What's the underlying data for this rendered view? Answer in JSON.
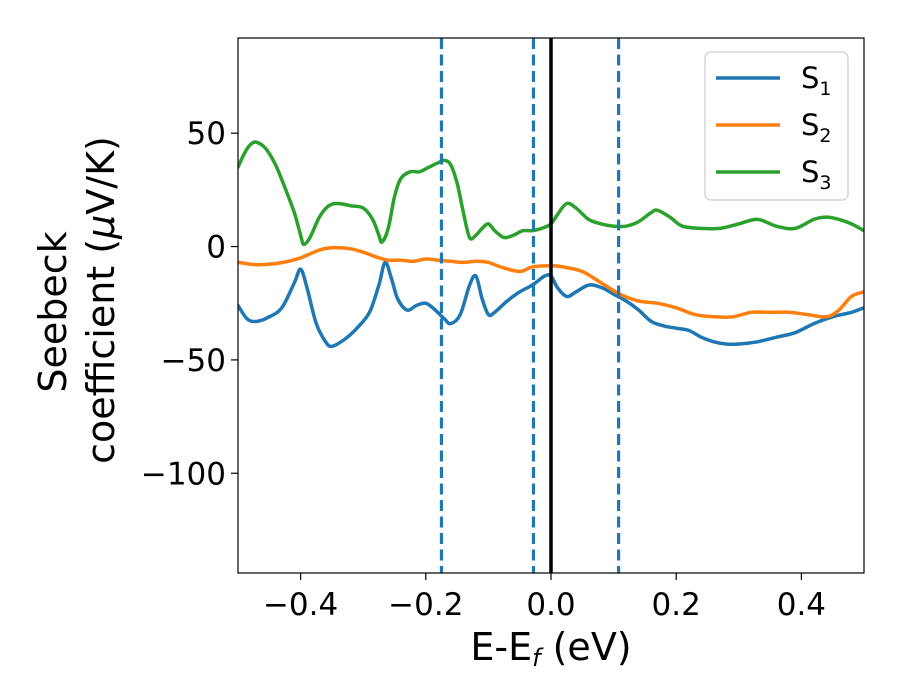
{
  "chart_data": {
    "type": "line",
    "xlabel": {
      "main": "E-E",
      "sub": "f",
      "unit": " (eV)"
    },
    "ylabel": {
      "line1": "Seebeck",
      "line2": "coefficient  (",
      "mu": "μ",
      "unit": "V/K)"
    },
    "xlim": [
      -0.5,
      0.5
    ],
    "ylim": [
      -144,
      92
    ],
    "xticks": [
      -0.4,
      -0.2,
      0.0,
      0.2,
      0.4
    ],
    "xtick_labels": [
      "−0.4",
      "−0.2",
      "0.0",
      "0.2",
      "0.4"
    ],
    "yticks": [
      50,
      0,
      -50,
      -100
    ],
    "ytick_labels": [
      "50",
      "0",
      "−50",
      "−100"
    ],
    "grid": false,
    "legend_position": "top-right",
    "series": [
      {
        "name": "S",
        "sub": "1",
        "color": "#1f77b4",
        "points": [
          [
            -0.5,
            -26
          ],
          [
            -0.485,
            -32
          ],
          [
            -0.47,
            -33
          ],
          [
            -0.45,
            -31
          ],
          [
            -0.43,
            -27
          ],
          [
            -0.41,
            -16
          ],
          [
            -0.4,
            -10
          ],
          [
            -0.39,
            -18
          ],
          [
            -0.375,
            -34
          ],
          [
            -0.36,
            -42
          ],
          [
            -0.35,
            -44
          ],
          [
            -0.33,
            -41
          ],
          [
            -0.31,
            -36
          ],
          [
            -0.29,
            -29
          ],
          [
            -0.275,
            -17
          ],
          [
            -0.265,
            -7
          ],
          [
            -0.255,
            -14
          ],
          [
            -0.245,
            -23
          ],
          [
            -0.23,
            -28
          ],
          [
            -0.215,
            -26
          ],
          [
            -0.2,
            -25
          ],
          [
            -0.185,
            -28
          ],
          [
            -0.17,
            -32
          ],
          [
            -0.16,
            -34
          ],
          [
            -0.145,
            -30
          ],
          [
            -0.13,
            -17
          ],
          [
            -0.12,
            -13
          ],
          [
            -0.11,
            -23
          ],
          [
            -0.1,
            -30
          ],
          [
            -0.09,
            -29
          ],
          [
            -0.07,
            -24
          ],
          [
            -0.05,
            -20
          ],
          [
            -0.03,
            -17
          ],
          [
            -0.01,
            -13
          ],
          [
            0.0,
            -13
          ],
          [
            0.01,
            -18
          ],
          [
            0.025,
            -22
          ],
          [
            0.04,
            -20
          ],
          [
            0.06,
            -17
          ],
          [
            0.08,
            -18
          ],
          [
            0.1,
            -21
          ],
          [
            0.12,
            -24
          ],
          [
            0.14,
            -28
          ],
          [
            0.16,
            -33
          ],
          [
            0.18,
            -35
          ],
          [
            0.2,
            -36
          ],
          [
            0.22,
            -37
          ],
          [
            0.24,
            -40
          ],
          [
            0.26,
            -42
          ],
          [
            0.28,
            -43
          ],
          [
            0.3,
            -43
          ],
          [
            0.33,
            -42
          ],
          [
            0.36,
            -40
          ],
          [
            0.39,
            -38
          ],
          [
            0.42,
            -34
          ],
          [
            0.45,
            -31
          ],
          [
            0.48,
            -29
          ],
          [
            0.5,
            -27
          ]
        ]
      },
      {
        "name": "S",
        "sub": "2",
        "color": "#ff7f0e",
        "points": [
          [
            -0.5,
            -7
          ],
          [
            -0.47,
            -8
          ],
          [
            -0.44,
            -7.5
          ],
          [
            -0.42,
            -6.5
          ],
          [
            -0.4,
            -5
          ],
          [
            -0.37,
            -1.5
          ],
          [
            -0.35,
            -0.5
          ],
          [
            -0.32,
            -1
          ],
          [
            -0.3,
            -2.5
          ],
          [
            -0.28,
            -4.5
          ],
          [
            -0.26,
            -6
          ],
          [
            -0.24,
            -6
          ],
          [
            -0.22,
            -6.5
          ],
          [
            -0.2,
            -5.5
          ],
          [
            -0.18,
            -6
          ],
          [
            -0.16,
            -6.5
          ],
          [
            -0.14,
            -7
          ],
          [
            -0.12,
            -6.5
          ],
          [
            -0.1,
            -7
          ],
          [
            -0.08,
            -9
          ],
          [
            -0.05,
            -11
          ],
          [
            -0.03,
            -9
          ],
          [
            0.0,
            -8.5
          ],
          [
            0.02,
            -9
          ],
          [
            0.05,
            -11
          ],
          [
            0.08,
            -16
          ],
          [
            0.11,
            -21
          ],
          [
            0.14,
            -24
          ],
          [
            0.17,
            -25
          ],
          [
            0.2,
            -27
          ],
          [
            0.23,
            -30
          ],
          [
            0.26,
            -31
          ],
          [
            0.29,
            -31
          ],
          [
            0.32,
            -29
          ],
          [
            0.35,
            -29
          ],
          [
            0.38,
            -29
          ],
          [
            0.41,
            -30
          ],
          [
            0.44,
            -31
          ],
          [
            0.46,
            -28
          ],
          [
            0.48,
            -22
          ],
          [
            0.5,
            -20
          ]
        ]
      },
      {
        "name": "S",
        "sub": "3",
        "color": "#2ca02c",
        "points": [
          [
            -0.5,
            35
          ],
          [
            -0.49,
            41
          ],
          [
            -0.48,
            45
          ],
          [
            -0.47,
            46
          ],
          [
            -0.455,
            43
          ],
          [
            -0.44,
            36
          ],
          [
            -0.425,
            26
          ],
          [
            -0.41,
            15
          ],
          [
            -0.4,
            5
          ],
          [
            -0.395,
            1
          ],
          [
            -0.385,
            4
          ],
          [
            -0.37,
            13
          ],
          [
            -0.355,
            18
          ],
          [
            -0.34,
            19
          ],
          [
            -0.32,
            18
          ],
          [
            -0.3,
            17
          ],
          [
            -0.285,
            12
          ],
          [
            -0.275,
            5
          ],
          [
            -0.27,
            2
          ],
          [
            -0.26,
            8
          ],
          [
            -0.25,
            22
          ],
          [
            -0.24,
            30
          ],
          [
            -0.225,
            33
          ],
          [
            -0.21,
            33
          ],
          [
            -0.195,
            35
          ],
          [
            -0.18,
            37
          ],
          [
            -0.17,
            38
          ],
          [
            -0.16,
            36
          ],
          [
            -0.15,
            28
          ],
          [
            -0.14,
            15
          ],
          [
            -0.13,
            4
          ],
          [
            -0.12,
            5
          ],
          [
            -0.11,
            8
          ],
          [
            -0.1,
            10
          ],
          [
            -0.09,
            7
          ],
          [
            -0.075,
            4
          ],
          [
            -0.06,
            5
          ],
          [
            -0.045,
            7
          ],
          [
            -0.03,
            7
          ],
          [
            -0.015,
            8
          ],
          [
            0.0,
            10
          ],
          [
            0.01,
            14
          ],
          [
            0.025,
            19
          ],
          [
            0.04,
            17
          ],
          [
            0.06,
            12
          ],
          [
            0.08,
            10
          ],
          [
            0.1,
            9
          ],
          [
            0.12,
            9
          ],
          [
            0.14,
            11
          ],
          [
            0.16,
            15
          ],
          [
            0.17,
            16
          ],
          [
            0.19,
            13
          ],
          [
            0.21,
            9
          ],
          [
            0.24,
            8
          ],
          [
            0.27,
            8
          ],
          [
            0.3,
            10
          ],
          [
            0.33,
            12
          ],
          [
            0.36,
            9
          ],
          [
            0.39,
            8
          ],
          [
            0.42,
            12
          ],
          [
            0.44,
            13
          ],
          [
            0.46,
            12
          ],
          [
            0.48,
            10
          ],
          [
            0.5,
            7
          ]
        ]
      }
    ],
    "vlines": [
      {
        "x": -0.175,
        "style": "dashed",
        "color": "#1f77b4"
      },
      {
        "x": -0.028,
        "style": "dashed",
        "color": "#1f77b4"
      },
      {
        "x": 0.0,
        "style": "solid",
        "color": "#000000"
      },
      {
        "x": 0.108,
        "style": "dashed",
        "color": "#1f77b4"
      }
    ]
  }
}
